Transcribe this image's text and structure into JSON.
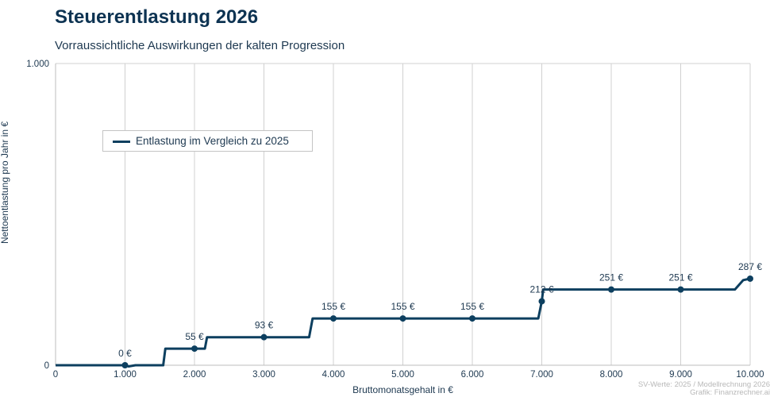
{
  "title": "Steuerentlastung 2026",
  "subtitle": "Vorraussichtliche Auswirkungen der kalten Progression",
  "credits": {
    "line1": "SV-Werte: 2025 / Modellrechnung 2026",
    "line2": "Grafik: Finanzrechner.ai"
  },
  "colors": {
    "line": "#0d3f5f",
    "grid": "#d0d0d0",
    "text": "#1d3850"
  },
  "chart_data": {
    "type": "line",
    "title": "Steuerentlastung 2026",
    "subtitle": "Vorraussichtliche Auswirkungen der kalten Progression",
    "xlabel": "Bruttomonatsgehalt in €",
    "ylabel": "Nettoentlastung pro Jahr in €",
    "xlim": [
      0,
      10000
    ],
    "ylim": [
      0,
      1000
    ],
    "x_ticks": [
      0,
      1000,
      2000,
      3000,
      4000,
      5000,
      6000,
      7000,
      8000,
      9000,
      10000
    ],
    "x_tick_labels": [
      "0",
      "1.000",
      "2.000",
      "3.000",
      "4.000",
      "5.000",
      "6.000",
      "7.000",
      "8.000",
      "9.000",
      "10.000"
    ],
    "y_ticks": [
      0,
      1000
    ],
    "y_tick_labels": [
      "0",
      "1.000"
    ],
    "grid": "vertical",
    "legend_position": "top-left",
    "series": [
      {
        "name": "Entlastung im Vergleich zu 2025",
        "color": "#0d3f5f",
        "x": [
          0,
          900,
          1000,
          1050,
          1150,
          1250,
          1550,
          1580,
          2150,
          2180,
          3650,
          3700,
          6950,
          7000,
          7020,
          9780,
          9900,
          10000
        ],
        "y": [
          0,
          0,
          0,
          -4,
          0,
          0,
          0,
          55,
          55,
          93,
          93,
          155,
          155,
          212,
          251,
          251,
          282,
          287
        ]
      }
    ],
    "markers": [
      {
        "x": 1000,
        "y": 0,
        "label": "0 €"
      },
      {
        "x": 2000,
        "y": 55,
        "label": "55 €"
      },
      {
        "x": 3000,
        "y": 93,
        "label": "93 €"
      },
      {
        "x": 4000,
        "y": 155,
        "label": "155 €"
      },
      {
        "x": 5000,
        "y": 155,
        "label": "155 €"
      },
      {
        "x": 6000,
        "y": 155,
        "label": "155 €"
      },
      {
        "x": 7000,
        "y": 212,
        "label": "212 €"
      },
      {
        "x": 8000,
        "y": 251,
        "label": "251 €"
      },
      {
        "x": 9000,
        "y": 251,
        "label": "251 €"
      },
      {
        "x": 10000,
        "y": 287,
        "label": "287 €"
      }
    ]
  }
}
